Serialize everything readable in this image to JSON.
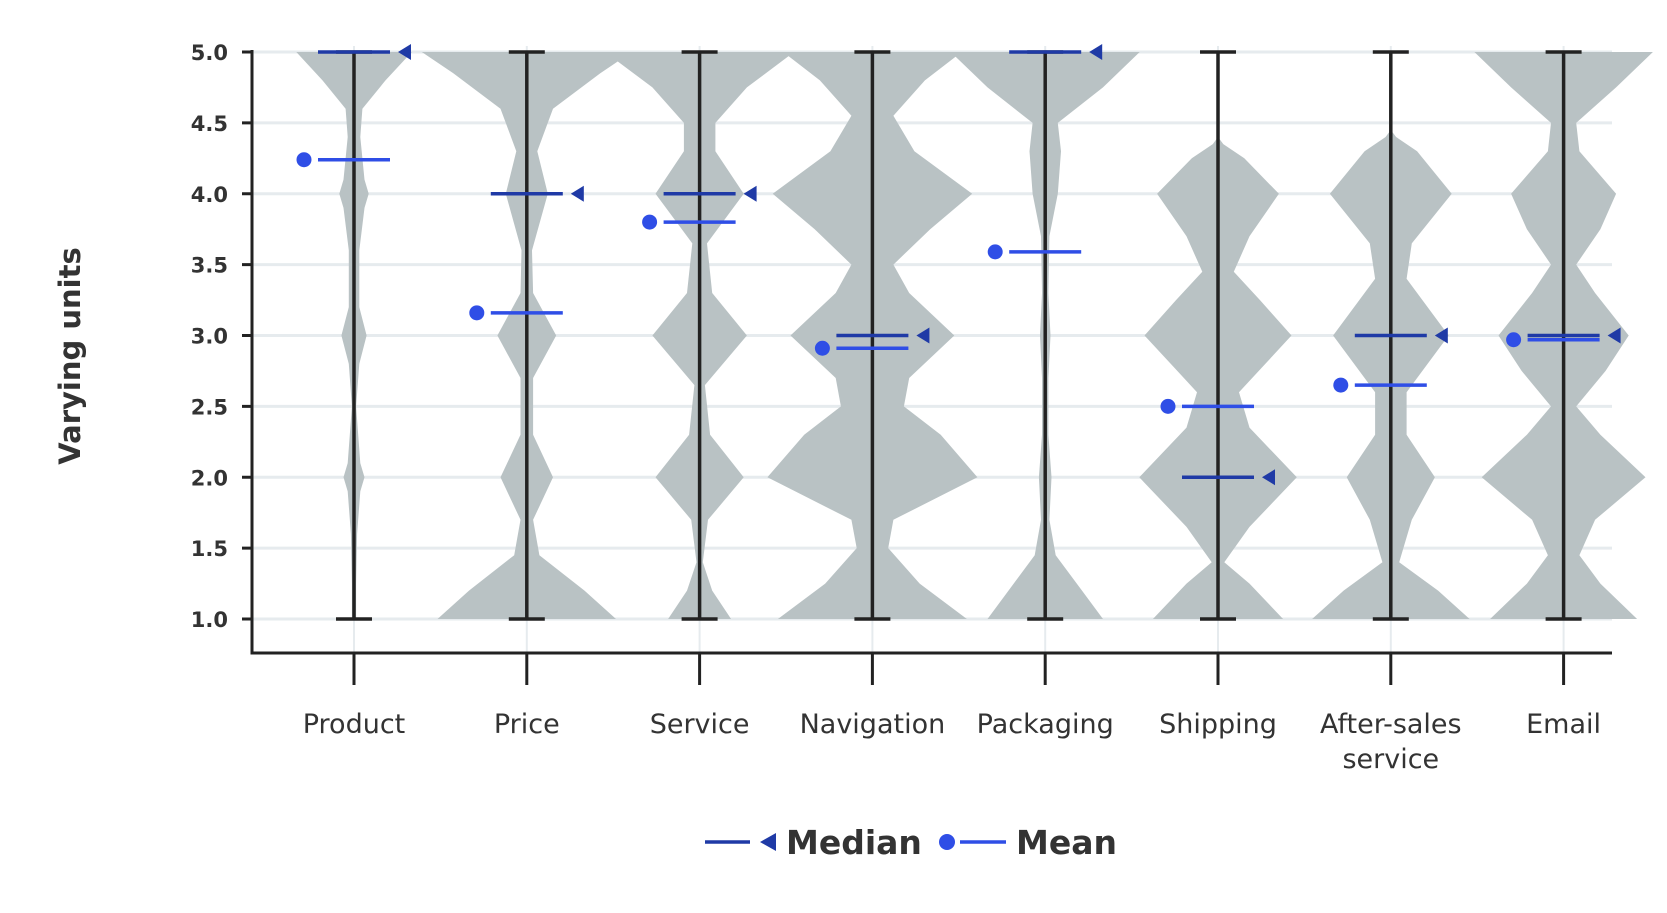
{
  "chart_data": {
    "type": "violin",
    "ylabel": "Varying  units",
    "ylim": [
      1.0,
      5.0
    ],
    "yticks": [
      "1.0",
      "1.5",
      "2.0",
      "2.5",
      "3.0",
      "3.5",
      "4.0",
      "4.5",
      "5.0"
    ],
    "grid": true,
    "legend": {
      "placement": "bottom-center",
      "entries": [
        {
          "key": "median",
          "label": "Median"
        },
        {
          "key": "mean",
          "label": "Mean"
        }
      ]
    },
    "colors": {
      "violin": "#b9c2c4",
      "whisker": "#222222",
      "median": "#1f3aa6",
      "mean": "#2f4ee6",
      "grid": "#e6ebee",
      "axis": "#222222"
    },
    "categories": [
      {
        "label": [
          "Product"
        ],
        "median": 5.0,
        "mean": 4.24,
        "min": 1.0,
        "max": 5.0,
        "density": [
          [
            1.0,
            0.02
          ],
          [
            1.25,
            0.02
          ],
          [
            1.6,
            0.03
          ],
          [
            1.9,
            0.06
          ],
          [
            2.0,
            0.1
          ],
          [
            2.1,
            0.06
          ],
          [
            2.5,
            0.02
          ],
          [
            2.8,
            0.05
          ],
          [
            3.0,
            0.12
          ],
          [
            3.2,
            0.05
          ],
          [
            3.6,
            0.05
          ],
          [
            3.9,
            0.1
          ],
          [
            4.0,
            0.14
          ],
          [
            4.1,
            0.1
          ],
          [
            4.4,
            0.06
          ],
          [
            4.6,
            0.08
          ],
          [
            4.8,
            0.3
          ],
          [
            5.0,
            0.55
          ]
        ]
      },
      {
        "label": [
          "Price"
        ],
        "median": 4.0,
        "mean": 3.16,
        "min": 1.0,
        "max": 5.0,
        "density": [
          [
            1.0,
            0.85
          ],
          [
            1.2,
            0.55
          ],
          [
            1.45,
            0.12
          ],
          [
            1.7,
            0.06
          ],
          [
            2.0,
            0.25
          ],
          [
            2.3,
            0.06
          ],
          [
            2.7,
            0.06
          ],
          [
            3.0,
            0.28
          ],
          [
            3.3,
            0.06
          ],
          [
            3.6,
            0.05
          ],
          [
            4.0,
            0.2
          ],
          [
            4.3,
            0.1
          ],
          [
            4.6,
            0.25
          ],
          [
            4.85,
            0.7
          ],
          [
            5.0,
            1.0
          ]
        ]
      },
      {
        "label": [
          "Service"
        ],
        "median": 4.0,
        "mean": 3.8,
        "min": 1.0,
        "max": 5.0,
        "density": [
          [
            1.0,
            0.3
          ],
          [
            1.2,
            0.12
          ],
          [
            1.4,
            0.03
          ],
          [
            1.7,
            0.08
          ],
          [
            2.0,
            0.42
          ],
          [
            2.3,
            0.1
          ],
          [
            2.65,
            0.05
          ],
          [
            3.0,
            0.45
          ],
          [
            3.3,
            0.12
          ],
          [
            3.65,
            0.07
          ],
          [
            4.0,
            0.42
          ],
          [
            4.3,
            0.15
          ],
          [
            4.5,
            0.15
          ],
          [
            4.75,
            0.45
          ],
          [
            5.0,
            0.9
          ]
        ]
      },
      {
        "label": [
          "Navigation"
        ],
        "median": 3.0,
        "mean": 2.91,
        "min": 1.0,
        "max": 5.0,
        "density": [
          [
            1.0,
            0.9
          ],
          [
            1.25,
            0.45
          ],
          [
            1.5,
            0.15
          ],
          [
            1.7,
            0.2
          ],
          [
            2.0,
            1.0
          ],
          [
            2.3,
            0.65
          ],
          [
            2.5,
            0.3
          ],
          [
            2.7,
            0.35
          ],
          [
            3.0,
            0.78
          ],
          [
            3.3,
            0.35
          ],
          [
            3.5,
            0.2
          ],
          [
            3.75,
            0.55
          ],
          [
            4.0,
            0.95
          ],
          [
            4.3,
            0.4
          ],
          [
            4.55,
            0.2
          ],
          [
            4.8,
            0.5
          ],
          [
            5.0,
            0.85
          ]
        ]
      },
      {
        "label": [
          "Packaging"
        ],
        "median": 5.0,
        "mean": 3.59,
        "min": 1.0,
        "max": 5.0,
        "density": [
          [
            1.0,
            0.55
          ],
          [
            1.2,
            0.35
          ],
          [
            1.45,
            0.1
          ],
          [
            1.7,
            0.04
          ],
          [
            2.0,
            0.06
          ],
          [
            2.3,
            0.03
          ],
          [
            2.7,
            0.03
          ],
          [
            3.0,
            0.05
          ],
          [
            3.3,
            0.03
          ],
          [
            3.7,
            0.04
          ],
          [
            4.0,
            0.12
          ],
          [
            4.3,
            0.15
          ],
          [
            4.5,
            0.12
          ],
          [
            4.75,
            0.55
          ],
          [
            5.0,
            0.9
          ]
        ]
      },
      {
        "label": [
          "Shipping"
        ],
        "median": 2.0,
        "mean": 2.5,
        "min": 1.0,
        "max": 5.0,
        "density": [
          [
            1.0,
            0.62
          ],
          [
            1.25,
            0.3
          ],
          [
            1.4,
            0.06
          ],
          [
            1.65,
            0.3
          ],
          [
            2.0,
            0.75
          ],
          [
            2.35,
            0.3
          ],
          [
            2.6,
            0.2
          ],
          [
            2.8,
            0.45
          ],
          [
            3.0,
            0.7
          ],
          [
            3.25,
            0.4
          ],
          [
            3.45,
            0.15
          ],
          [
            3.7,
            0.3
          ],
          [
            4.0,
            0.58
          ],
          [
            4.25,
            0.25
          ],
          [
            4.35,
            0.05
          ],
          [
            4.4,
            0.0
          ]
        ]
      },
      {
        "label": [
          "After-sales",
          "service"
        ],
        "median": 3.0,
        "mean": 2.65,
        "min": 1.0,
        "max": 5.0,
        "density": [
          [
            1.0,
            0.75
          ],
          [
            1.2,
            0.45
          ],
          [
            1.4,
            0.08
          ],
          [
            1.7,
            0.2
          ],
          [
            2.0,
            0.42
          ],
          [
            2.3,
            0.15
          ],
          [
            2.6,
            0.15
          ],
          [
            3.0,
            0.55
          ],
          [
            3.4,
            0.15
          ],
          [
            3.65,
            0.2
          ],
          [
            4.0,
            0.58
          ],
          [
            4.3,
            0.25
          ],
          [
            4.4,
            0.05
          ],
          [
            4.45,
            0.0
          ]
        ]
      },
      {
        "label": [
          "Email"
        ],
        "median": 3.0,
        "mean": 2.97,
        "min": 1.0,
        "max": 5.0,
        "density": [
          [
            1.0,
            0.7
          ],
          [
            1.25,
            0.35
          ],
          [
            1.45,
            0.15
          ],
          [
            1.7,
            0.3
          ],
          [
            2.0,
            0.78
          ],
          [
            2.3,
            0.35
          ],
          [
            2.5,
            0.12
          ],
          [
            2.75,
            0.4
          ],
          [
            3.0,
            0.62
          ],
          [
            3.3,
            0.3
          ],
          [
            3.5,
            0.12
          ],
          [
            3.75,
            0.35
          ],
          [
            4.0,
            0.5
          ],
          [
            4.3,
            0.15
          ],
          [
            4.5,
            0.12
          ],
          [
            4.75,
            0.5
          ],
          [
            5.0,
            0.85
          ]
        ]
      }
    ]
  }
}
